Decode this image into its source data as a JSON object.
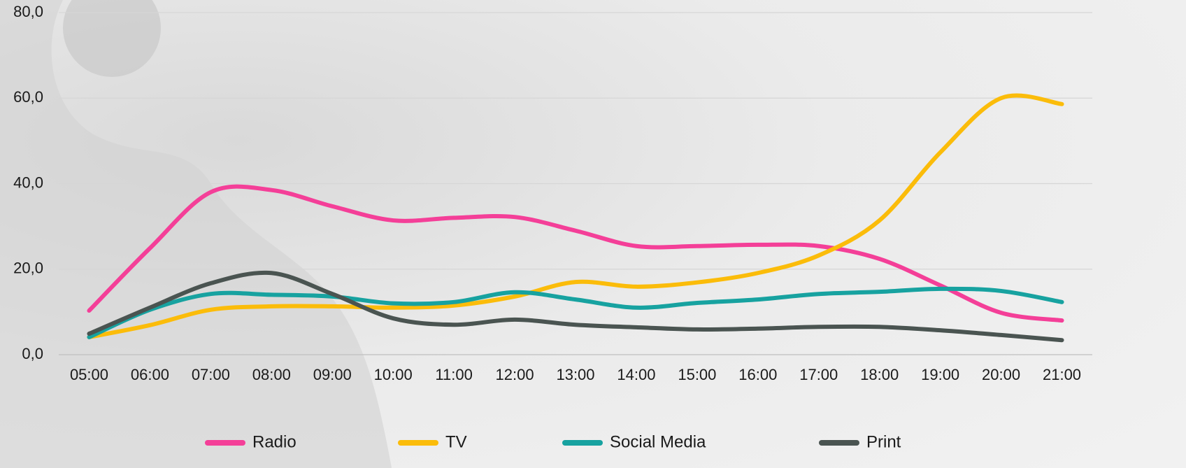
{
  "chart_data": {
    "type": "line",
    "categories": [
      "05:00",
      "06:00",
      "07:00",
      "08:00",
      "09:00",
      "10:00",
      "11:00",
      "12:00",
      "13:00",
      "14:00",
      "15:00",
      "16:00",
      "17:00",
      "18:00",
      "19:00",
      "20:00",
      "21:00"
    ],
    "series": [
      {
        "name": "Radio",
        "color": "#f43f98",
        "values": [
          10.3,
          24.9,
          38,
          38.5,
          34.7,
          31.4,
          32,
          32.2,
          29,
          25.4,
          25.4,
          25.7,
          25.4,
          22.4,
          16.2,
          9.8,
          8
        ]
      },
      {
        "name": "TV",
        "color": "#fbbc0a",
        "values": [
          4.1,
          6.9,
          10.5,
          11.3,
          11.3,
          11,
          11.5,
          13.6,
          17,
          15.9,
          16.9,
          19.1,
          23.2,
          31.4,
          47.3,
          60,
          58.6
        ]
      },
      {
        "name": "Social Media",
        "color": "#17a2a0",
        "values": [
          4.1,
          10.5,
          14.2,
          14,
          13.6,
          12,
          12.3,
          14.6,
          12.9,
          11,
          12.1,
          12.9,
          14.2,
          14.7,
          15.4,
          14.9,
          12.3
        ]
      },
      {
        "name": "Print",
        "color": "#4a5451",
        "values": [
          4.9,
          11,
          16.7,
          19.1,
          14.2,
          8.5,
          7,
          8.2,
          7,
          6.4,
          5.9,
          6.1,
          6.5,
          6.5,
          5.7,
          4.6,
          3.4
        ]
      }
    ],
    "ylim": [
      0,
      80
    ],
    "yticks": [
      {
        "value": 0,
        "label": "0,0"
      },
      {
        "value": 20,
        "label": "20,0"
      },
      {
        "value": 40,
        "label": "40,0"
      },
      {
        "value": 60,
        "label": "60,0"
      },
      {
        "value": 80,
        "label": "80,0"
      }
    ],
    "grid": true,
    "legend": "bottom"
  }
}
